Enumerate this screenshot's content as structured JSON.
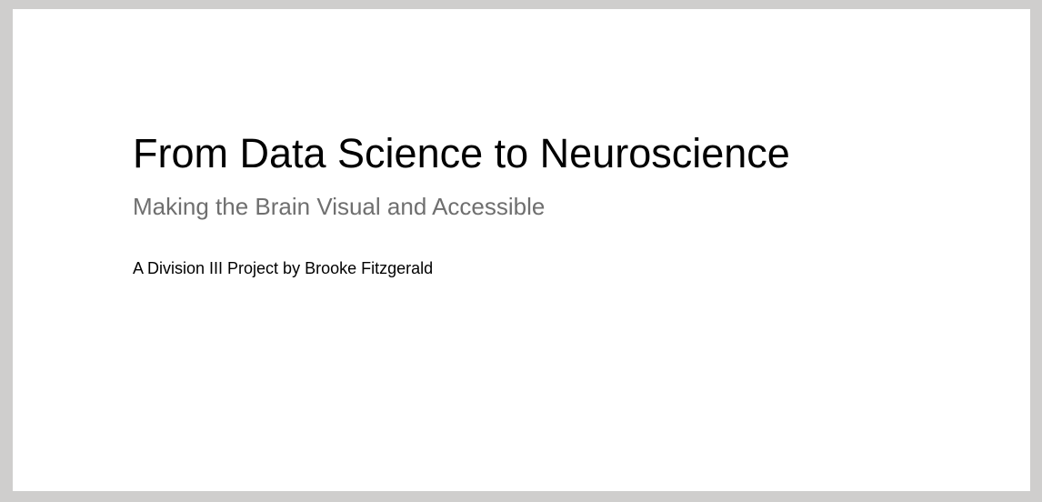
{
  "slide": {
    "title": "From Data Science to Neuroscience",
    "subtitle": "Making the Brain Visual and Accessible",
    "byline": "A Division III Project by Brooke Fitzgerald"
  },
  "colors": {
    "frame_background": "#cfcecd",
    "slide_background": "#ffffff",
    "title_text": "#000000",
    "subtitle_text": "#6f6f6f"
  }
}
